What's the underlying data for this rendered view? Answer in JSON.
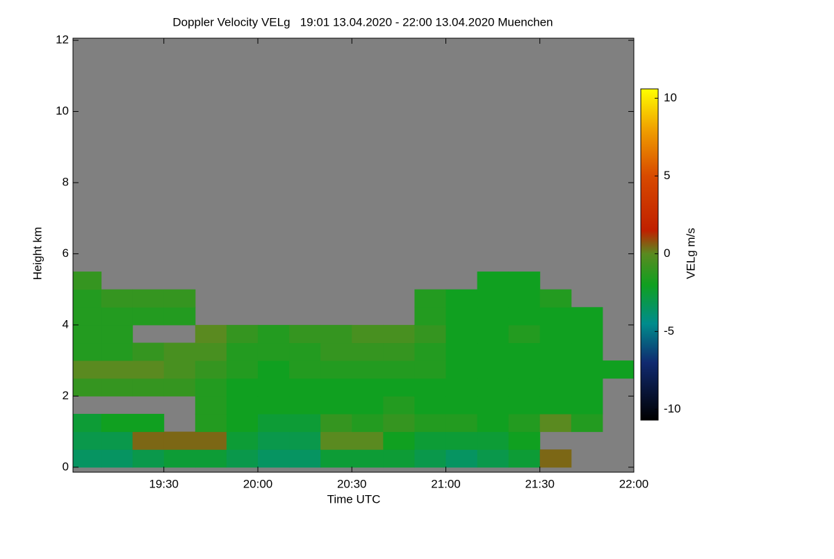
{
  "chart_data": {
    "type": "heatmap",
    "title": "Doppler Velocity VELg   19:01 13.04.2020 - 22:00 13.04.2020 Muenchen",
    "x_label": "Time UTC",
    "y_label": "Height km",
    "colorbar_label": "VELg m/s",
    "xlim": [
      "19:01",
      "22:00"
    ],
    "xticks": [
      "19:30",
      "20:00",
      "20:30",
      "21:00",
      "21:30",
      "22:00"
    ],
    "ylim": [
      -0.14,
      12.06
    ],
    "yticks": [
      0,
      2,
      4,
      6,
      8,
      10,
      12
    ],
    "zlim": [
      -10.7,
      10.6
    ],
    "zticks": [
      -10,
      -5,
      0,
      5,
      10
    ],
    "missing_color": "#808080",
    "colormap": [
      [
        -10.7,
        "#000000"
      ],
      [
        -7,
        "#102a70"
      ],
      [
        -4.5,
        "#008c8c"
      ],
      [
        -2,
        "#10a020"
      ],
      [
        0,
        "#5a8a20"
      ],
      [
        1.5,
        "#c02000"
      ],
      [
        5,
        "#d84a00"
      ],
      [
        8,
        "#f0a000"
      ],
      [
        10.6,
        "#ffff00"
      ]
    ],
    "x_edges": [
      "19:01",
      "19:10",
      "19:20",
      "19:30",
      "19:40",
      "19:50",
      "20:00",
      "20:10",
      "20:20",
      "20:30",
      "20:40",
      "20:50",
      "21:00",
      "21:10",
      "21:20",
      "21:30",
      "21:40",
      "21:50",
      "22:00"
    ],
    "y_edges": [
      0,
      0.5,
      1,
      1.5,
      2,
      2.5,
      3,
      3.5,
      4,
      4.5,
      5,
      5.5,
      6
    ],
    "z": [
      [
        -3.5,
        -3.5,
        -3,
        -2.5,
        -2.5,
        -3,
        -3.5,
        -3.5,
        -2.5,
        -2.5,
        -2.5,
        -3,
        -3.5,
        -3,
        -2.5,
        0.5,
        null,
        null
      ],
      [
        -3,
        -3,
        0.5,
        0.5,
        0.5,
        -2.5,
        -3,
        -3,
        0,
        0,
        -2,
        -2.5,
        -2.5,
        -2.5,
        -2,
        null,
        null,
        null
      ],
      [
        -2.5,
        -2,
        -2,
        null,
        -1.5,
        -2,
        -2.5,
        -2.5,
        -1,
        -1.5,
        -1,
        -1.5,
        -1.5,
        -2,
        -1.5,
        0,
        -1.5,
        null
      ],
      [
        null,
        null,
        null,
        null,
        -1.5,
        -2,
        -2,
        -2,
        -2,
        -2,
        -1.5,
        -2,
        -2,
        -2,
        -2,
        -2,
        -2,
        null
      ],
      [
        -1,
        -1,
        -1,
        -1,
        -1.5,
        -2,
        -2,
        -2,
        -2,
        -2,
        -2,
        -2,
        -2,
        -2,
        -2,
        -2,
        -2,
        null
      ],
      [
        0,
        0,
        0,
        -0.5,
        -1,
        -1.5,
        -2,
        -1.5,
        -1.5,
        -1.5,
        -1.5,
        -1.5,
        -2,
        -2,
        -2,
        -2,
        -2,
        -2
      ],
      [
        -1.5,
        -1.5,
        -1,
        -0.5,
        -0.5,
        -1.5,
        -1.5,
        -1.5,
        -1,
        -1,
        -1,
        -1.5,
        -2,
        -2,
        -2,
        -2,
        -2,
        null
      ],
      [
        -1.5,
        -1.5,
        null,
        null,
        0,
        -1,
        -1.5,
        -1,
        -1,
        -0.5,
        -0.5,
        -1,
        -2,
        -2,
        -1.5,
        -2,
        -2,
        null
      ],
      [
        -1.5,
        -1.5,
        -1.5,
        -1.5,
        null,
        null,
        null,
        null,
        null,
        null,
        null,
        -1.5,
        -2,
        -2,
        -2,
        -2,
        -2,
        null
      ],
      [
        -1.5,
        -1,
        -1,
        -1,
        null,
        null,
        null,
        null,
        null,
        null,
        null,
        -1.5,
        -2,
        -2,
        -2,
        -1.5,
        null,
        null
      ],
      [
        -1,
        null,
        null,
        null,
        null,
        null,
        null,
        null,
        null,
        null,
        null,
        null,
        null,
        -2,
        -2,
        null,
        null,
        null
      ],
      [
        null,
        null,
        null,
        null,
        null,
        null,
        null,
        null,
        null,
        null,
        null,
        null,
        null,
        null,
        null,
        null,
        null,
        null
      ]
    ]
  }
}
